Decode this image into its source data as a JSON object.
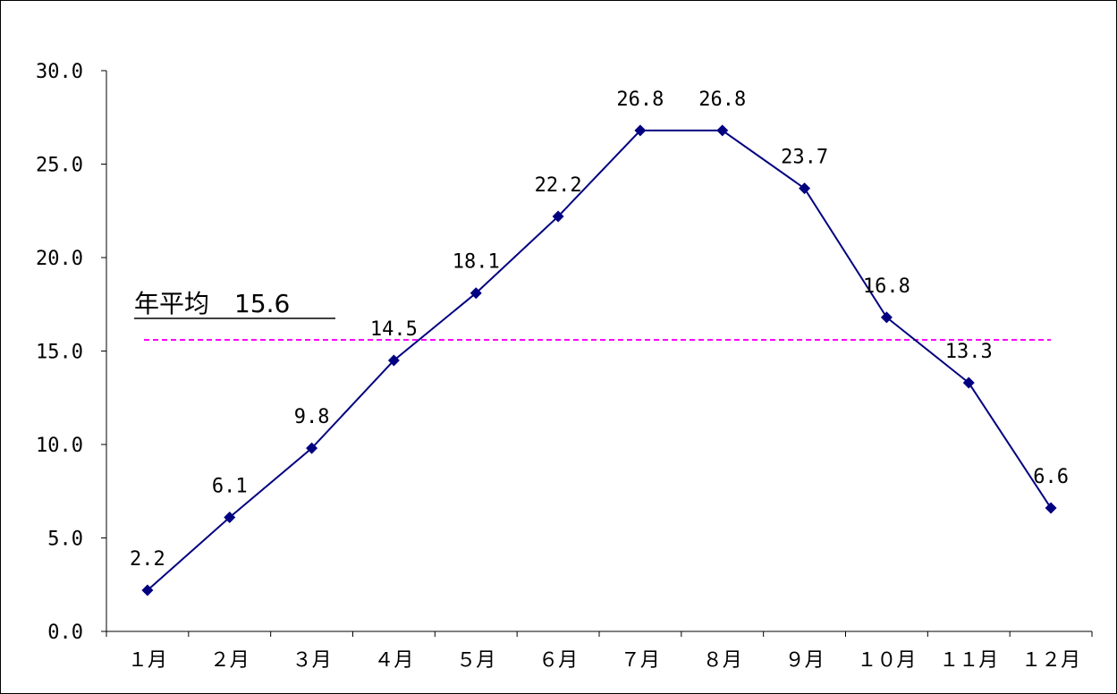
{
  "chart_data": {
    "type": "line",
    "categories": [
      "１月",
      "２月",
      "３月",
      "４月",
      "５月",
      "６月",
      "７月",
      "８月",
      "９月",
      "１０月",
      "１１月",
      "１２月"
    ],
    "series": [
      {
        "values": [
          2.2,
          6.1,
          9.8,
          14.5,
          18.1,
          22.2,
          26.8,
          26.8,
          23.7,
          16.8,
          13.3,
          6.6
        ],
        "color": "#000080"
      }
    ],
    "data_labels": [
      "2.2",
      "6.1",
      "9.8",
      "14.5",
      "18.1",
      "22.2",
      "26.8",
      "26.8",
      "23.7",
      "16.8",
      "13.3",
      "6.6"
    ],
    "yticks": [
      "0.0",
      "5.0",
      "10.0",
      "15.0",
      "20.0",
      "25.0",
      "30.0"
    ],
    "ylim": [
      0,
      30
    ],
    "average": {
      "value": 15.6,
      "label": "年平均　15.6",
      "color": "#ff00ff"
    },
    "grid": false,
    "marker": "diamond"
  }
}
